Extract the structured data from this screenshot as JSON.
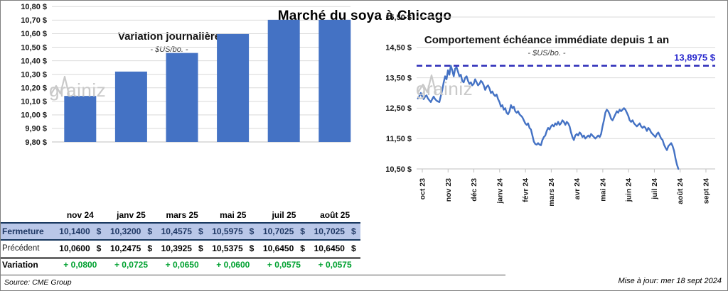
{
  "page_title": "Marché du soya à Chicago",
  "watermark": {
    "prefix": "grain",
    "suffix": "iz"
  },
  "footer": {
    "source": "Source: CME Group",
    "updated": "Mise à jour: mer 18 sept 2024"
  },
  "colors": {
    "accent_blue": "#4472C4",
    "reference_blue": "#2A2AB8",
    "reference_label_blue": "#2323CC",
    "close_row_bg": "#B9C7E8",
    "close_row_text": "#1F3864",
    "variation_green": "#00A130",
    "grid": "#D9D9D9",
    "axis": "#BFBFBF",
    "watermark_gray": "#C9C9C9"
  },
  "table": {
    "columns": [
      "nov 24",
      "janv 25",
      "mars 25",
      "mai 25",
      "juil 25",
      "août 25"
    ],
    "rows": [
      {
        "key": "fermeture",
        "label": "Fermeture",
        "currency": "$",
        "values": [
          "10,1400",
          "10,3200",
          "10,4575",
          "10,5975",
          "10,7025",
          "10,7025"
        ]
      },
      {
        "key": "precedent",
        "label": "Précédent",
        "currency": "$",
        "values": [
          "10,0600",
          "10,2475",
          "10,3925",
          "10,5375",
          "10,6450",
          "10,6450"
        ]
      },
      {
        "key": "variation",
        "label": "Variation",
        "currency": "",
        "values": [
          "+ 0,0800",
          "+ 0,0725",
          "+ 0,0650",
          "+ 0,0600",
          "+ 0,0575",
          "+ 0,0575"
        ]
      }
    ]
  },
  "chart_data": [
    {
      "type": "bar",
      "title": "Variation  journalière",
      "subtitle": "- $US/bo. -",
      "unit": "$US/bo.",
      "categories": [
        "nov 24",
        "janv 25",
        "mars 25",
        "mai 25",
        "juil 25",
        "août 25"
      ],
      "values": [
        10.14,
        10.32,
        10.4575,
        10.5975,
        10.7025,
        10.7025
      ],
      "ylim": [
        9.8,
        10.8
      ],
      "ytick_labels": [
        "10,80 $",
        "10,70 $",
        "10,60 $",
        "10,50 $",
        "10,40 $",
        "10,30 $",
        "10,20 $",
        "10,10 $",
        "10,00 $",
        "9,90 $",
        "9,80 $"
      ],
      "grid": true,
      "legend": "none"
    },
    {
      "type": "line",
      "title": "Comportement  échéance immédiate depuis 1 an",
      "subtitle": "- $US/bo. -",
      "unit": "$US/bo.",
      "x_tick_labels": [
        "oct 23",
        "nov 23",
        "déc 23",
        "janv 24",
        "févr 24",
        "mars 24",
        "avr 24",
        "mai 24",
        "juin 24",
        "juil 24",
        "août 24",
        "sept 24"
      ],
      "ytick_labels": [
        "15,50 $",
        "14,50 $",
        "13,50 $",
        "12,50 $",
        "11,50 $",
        "10,50 $"
      ],
      "ylim": [
        10.5,
        15.5
      ],
      "grid": true,
      "legend": "none",
      "reference_line": {
        "value": 13.8975,
        "label": "13,8975 $",
        "style": "dashed"
      },
      "series": [
        {
          "name": "échéance immédiate",
          "x_range_months": [
            -0.17,
            9.93
          ],
          "values": [
            12.82,
            12.9,
            13.0,
            12.88,
            12.8,
            12.88,
            12.92,
            12.82,
            12.76,
            12.7,
            12.8,
            12.88,
            12.8,
            12.75,
            12.72,
            12.7,
            12.9,
            13.1,
            13.35,
            13.55,
            13.45,
            13.75,
            13.6,
            13.9,
            13.75,
            13.55,
            13.8,
            13.85,
            13.7,
            13.55,
            13.6,
            13.4,
            13.35,
            13.5,
            13.55,
            13.4,
            13.3,
            13.35,
            13.25,
            13.3,
            13.45,
            13.35,
            13.25,
            13.3,
            13.4,
            13.35,
            13.25,
            13.1,
            13.2,
            13.25,
            13.15,
            13.0,
            13.05,
            12.95,
            12.9,
            12.95,
            12.8,
            12.7,
            12.55,
            12.6,
            12.45,
            12.5,
            12.35,
            12.3,
            12.4,
            12.6,
            12.5,
            12.55,
            12.4,
            12.35,
            12.4,
            12.3,
            12.25,
            12.2,
            12.1,
            12.0,
            11.95,
            12.0,
            11.85,
            11.8,
            11.6,
            11.4,
            11.32,
            11.3,
            11.35,
            11.3,
            11.28,
            11.45,
            11.55,
            11.6,
            11.75,
            11.85,
            11.8,
            11.9,
            11.95,
            11.9,
            12.0,
            11.95,
            12.05,
            11.95,
            12.0,
            12.1,
            12.05,
            11.95,
            12.05,
            12.0,
            11.9,
            11.7,
            11.55,
            11.45,
            11.6,
            11.65,
            11.6,
            11.7,
            11.65,
            11.55,
            11.6,
            11.5,
            11.55,
            11.6,
            11.55,
            11.65,
            11.6,
            11.55,
            11.5,
            11.55,
            11.6,
            11.55,
            11.65,
            11.9,
            12.1,
            12.35,
            12.45,
            12.4,
            12.3,
            12.15,
            12.1,
            12.2,
            12.3,
            12.4,
            12.35,
            12.45,
            12.4,
            12.45,
            12.5,
            12.45,
            12.35,
            12.25,
            12.1,
            12.05,
            12.1,
            12.0,
            11.95,
            11.9,
            11.95,
            12.0,
            11.9,
            11.85,
            11.9,
            11.85,
            11.75,
            11.85,
            11.8,
            11.7,
            11.65,
            11.6,
            11.55,
            11.65,
            11.7,
            11.6,
            11.5,
            11.45,
            11.3,
            11.2,
            11.12,
            11.25,
            11.3,
            11.35,
            11.25,
            11.1,
            10.85,
            10.65,
            10.5
          ]
        }
      ]
    }
  ]
}
